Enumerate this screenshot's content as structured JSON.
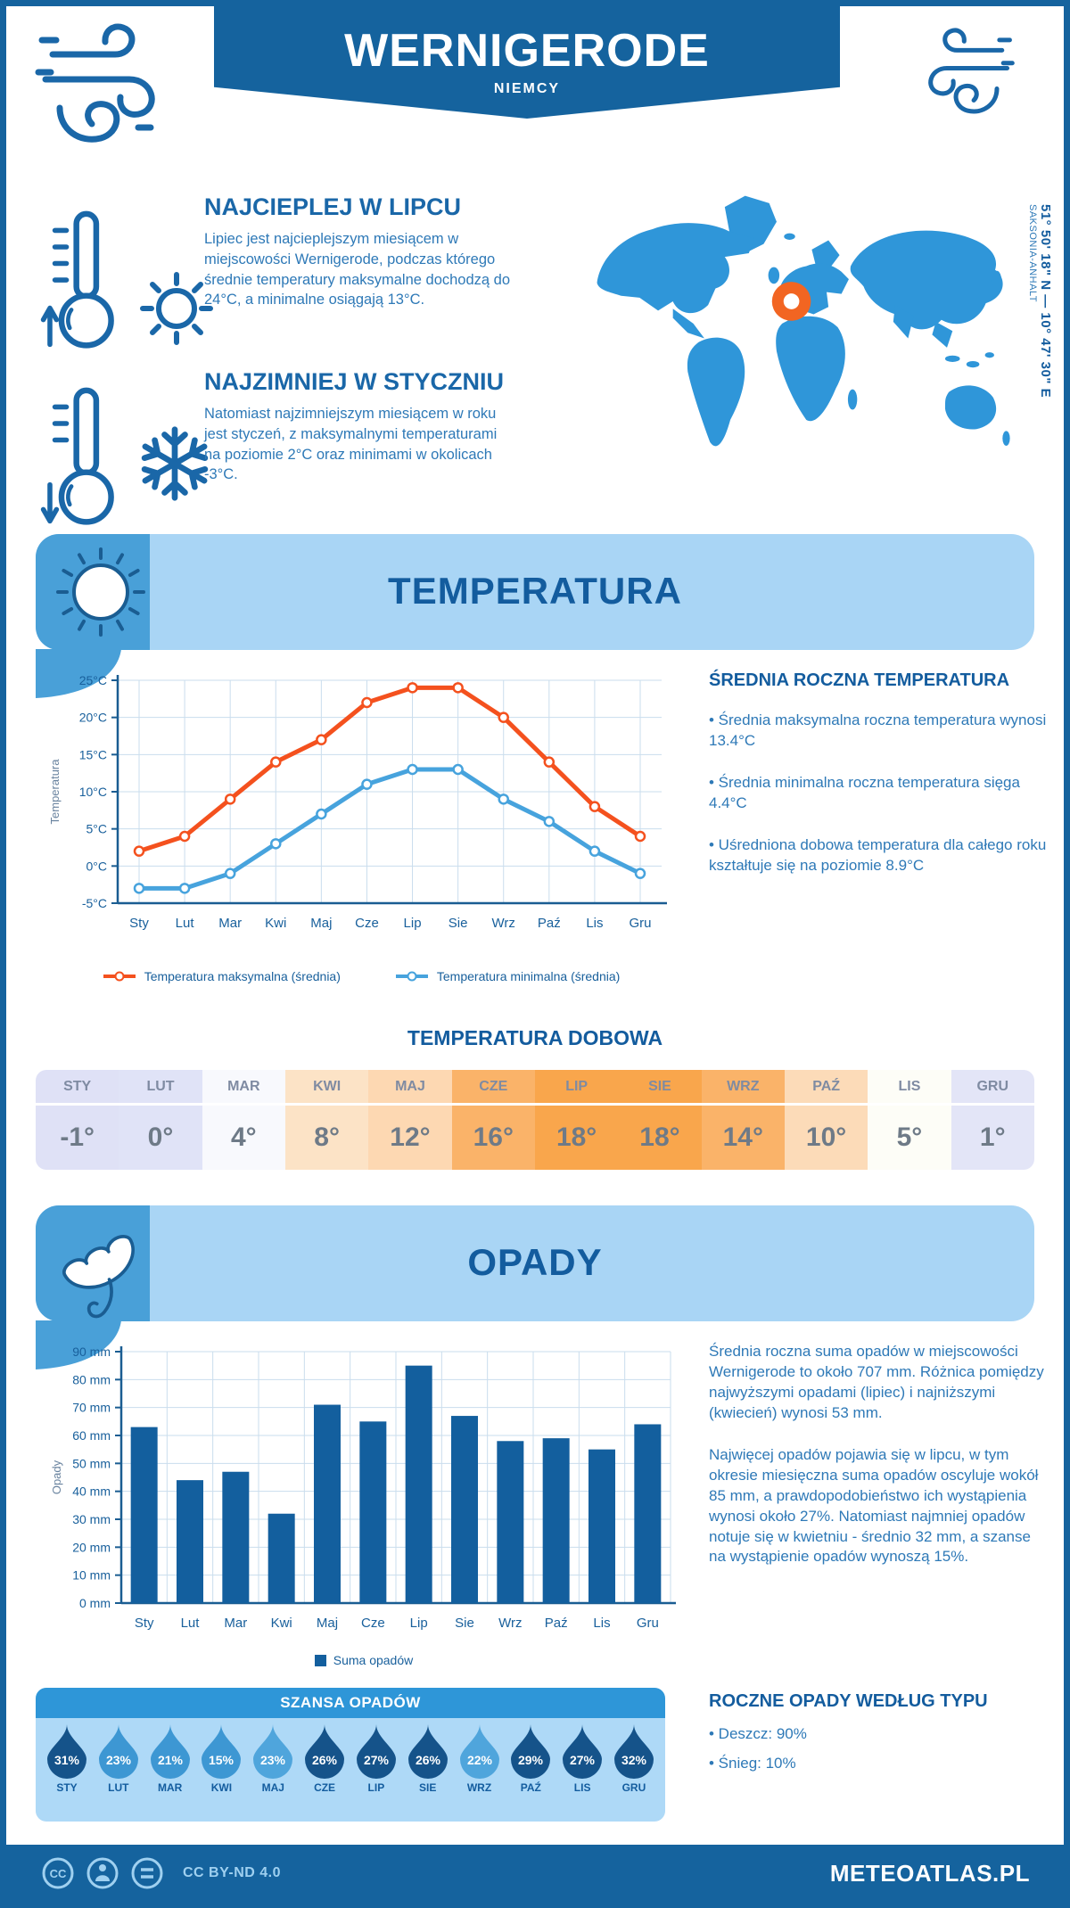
{
  "colors": {
    "primary_dark_blue": "#15639e",
    "heading_blue": "#1a67a8",
    "body_text_blue": "#2e79b7",
    "banner_light_blue": "#a9d5f5",
    "banner_medium_blue": "#49a0d8",
    "map_blue": "#2f96d9",
    "marker_orange": "#f26522"
  },
  "header": {
    "title": "WERNIGERODE",
    "subtitle": "NIEMCY"
  },
  "highlights": {
    "warmest": {
      "title": "NAJCIEPLEJ W LIPCU",
      "text": "Lipiec jest najcieplejszym miesiącem w miejscowości Wernigerode, podczas którego średnie temperatury maksymalne dochodzą do 24°C, a minimalne osiągają 13°C."
    },
    "coldest": {
      "title": "NAJZIMNIEJ W STYCZNIU",
      "text": "Natomiast najzimniejszym miesiącem w roku jest styczeń, z maksymalnymi temperaturami na poziomie 2°C oraz minimami w okolicach -3°C."
    }
  },
  "location": {
    "coordinates": "51° 50' 18\" N — 10° 47' 30\" E",
    "region": "SAKSONIA-ANHALT"
  },
  "temperature": {
    "section_title": "TEMPERATURA",
    "annual": {
      "title": "ŚREDNIA ROCZNA TEMPERATURA",
      "bullets": [
        "• Średnia maksymalna roczna temperatura wynosi 13.4°C",
        "• Średnia minimalna roczna temperatura sięga 4.4°C",
        "• Uśredniona dobowa temperatura dla całego roku kształtuje się na poziomie 8.9°C"
      ]
    },
    "daily": {
      "title": "TEMPERATURA DOBOWA",
      "months": [
        "STY",
        "LUT",
        "MAR",
        "KWI",
        "MAJ",
        "CZE",
        "LIP",
        "SIE",
        "WRZ",
        "PAŹ",
        "LIS",
        "GRU"
      ],
      "values": [
        "-1°",
        "0°",
        "4°",
        "8°",
        "12°",
        "16°",
        "18°",
        "18°",
        "14°",
        "10°",
        "5°",
        "1°"
      ],
      "cell_colors": [
        "#dfe1f6",
        "#e0e3f7",
        "#f8f9fd",
        "#fce3c6",
        "#fdd8b2",
        "#fab369",
        "#f9a64c",
        "#f9a64c",
        "#fab369",
        "#fcdbb8",
        "#fdfdf7",
        "#e3e5f7"
      ]
    }
  },
  "precipitation": {
    "section_title": "OPADY",
    "paragraphs": [
      "Średnia roczna suma opadów w miejscowości Wernigerode to około 707 mm. Różnica pomiędzy najwyższymi opadami (lipiec) i najniższymi (kwiecień) wynosi 53 mm.",
      "Najwięcej opadów pojawia się w lipcu, w tym okresie miesięczna suma opadów oscyluje wokół 85 mm, a prawdopodobieństwo ich wystąpienia wynosi około 27%. Natomiast najmniej opadów notuje się w kwietniu - średnio 32 mm, a szanse na wystąpienie opadów wynoszą 15%."
    ],
    "by_type": {
      "title": "ROCZNE OPADY WEDŁUG TYPU",
      "bullets": [
        "• Deszcz: 90%",
        "• Śnieg: 10%"
      ]
    },
    "chance": {
      "title": "SZANSA OPADÓW",
      "months": [
        "STY",
        "LUT",
        "MAR",
        "KWI",
        "MAJ",
        "CZE",
        "LIP",
        "SIE",
        "WRZ",
        "PAŹ",
        "LIS",
        "GRU"
      ],
      "values": [
        "31%",
        "23%",
        "21%",
        "15%",
        "23%",
        "26%",
        "27%",
        "26%",
        "22%",
        "29%",
        "27%",
        "32%"
      ],
      "colors": [
        "#15538a",
        "#3d97d3",
        "#3d97d3",
        "#3d97d3",
        "#4fa5dc",
        "#15538a",
        "#15538a",
        "#15538a",
        "#4fa5dc",
        "#15538a",
        "#15538a",
        "#15538a"
      ]
    }
  },
  "chart_data": [
    {
      "type": "line",
      "title": "",
      "categories": [
        "Sty",
        "Lut",
        "Mar",
        "Kwi",
        "Maj",
        "Cze",
        "Lip",
        "Sie",
        "Wrz",
        "Paź",
        "Lis",
        "Gru"
      ],
      "series": [
        {
          "name": "Temperatura maksymalna (średnia)",
          "color": "#f4511e",
          "values": [
            2,
            4,
            9,
            14,
            17,
            22,
            24,
            24,
            20,
            14,
            8,
            4
          ]
        },
        {
          "name": "Temperatura minimalna (średnia)",
          "color": "#47a3dd",
          "values": [
            -3,
            -3,
            -1,
            3,
            7,
            11,
            13,
            13,
            9,
            6,
            2,
            -1
          ]
        }
      ],
      "xlabel": "",
      "ylabel": "Temperatura",
      "ylim": [
        -5,
        25
      ],
      "ytick_step": 5,
      "ytick_suffix": "°C",
      "grid": true,
      "legend_position": "bottom"
    },
    {
      "type": "bar",
      "title": "",
      "categories": [
        "Sty",
        "Lut",
        "Mar",
        "Kwi",
        "Maj",
        "Cze",
        "Lip",
        "Sie",
        "Wrz",
        "Paź",
        "Lis",
        "Gru"
      ],
      "series": [
        {
          "name": "Suma opadów",
          "color": "#135f9e",
          "values": [
            63,
            44,
            47,
            32,
            71,
            65,
            85,
            67,
            58,
            59,
            55,
            64
          ]
        }
      ],
      "xlabel": "",
      "ylabel": "Opady",
      "ylim": [
        0,
        90
      ],
      "ytick_step": 10,
      "ytick_suffix": " mm",
      "grid": true,
      "legend_position": "bottom"
    }
  ],
  "footer": {
    "license": "CC BY-ND 4.0",
    "brand": "METEOATLAS.PL"
  }
}
